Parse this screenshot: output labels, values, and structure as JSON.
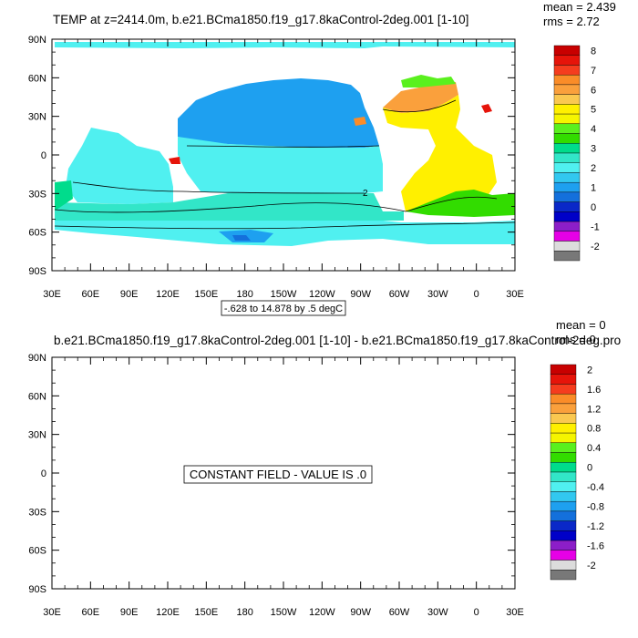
{
  "panel_top": {
    "title": "TEMP at z=2414.0m, b.e21.BCma1850.f19_g17.8kaControl-2deg.001 [1-10]",
    "mean_label": "mean = 2.439",
    "rms_label": "rms = 2.72",
    "contour_info": "-.628 to 14.878 by .5 degC",
    "contour_label": "2",
    "lat_labels": [
      "90N",
      "60N",
      "30N",
      "0",
      "30S",
      "60S",
      "90S"
    ],
    "lon_labels": [
      "30E",
      "60E",
      "90E",
      "120E",
      "150E",
      "180",
      "150W",
      "120W",
      "90W",
      "60W",
      "30W",
      "0",
      "30E"
    ],
    "colorbar_labels": [
      "8",
      "7",
      "6",
      "5",
      "4",
      "3",
      "2",
      "1",
      "0",
      "-1",
      "-2"
    ]
  },
  "panel_bottom": {
    "title": "b.e21.BCma1850.f19_g17.8kaControl-2deg.001 [1-10] - b.e21.BCma1850.f19_g17.8kaControl-2deg.pro",
    "mean_label": "mean = 0",
    "rms_label": "rms = 0",
    "constant_text": "CONSTANT FIELD - VALUE IS .0",
    "lat_labels": [
      "90N",
      "60N",
      "30N",
      "0",
      "30S",
      "60S",
      "90S"
    ],
    "lon_labels": [
      "30E",
      "60E",
      "90E",
      "120E",
      "150E",
      "180",
      "150W",
      "120W",
      "90W",
      "60W",
      "30W",
      "0",
      "30E"
    ],
    "colorbar_labels": [
      "2",
      "1.6",
      "1.2",
      "0.8",
      "0.4",
      "0",
      "-0.4",
      "-0.8",
      "-1.2",
      "-1.6",
      "-2"
    ]
  },
  "colorbar_colors": [
    "#c80000",
    "#e6140a",
    "#f53c1e",
    "#fa8c28",
    "#faa03c",
    "#fac850",
    "#fff000",
    "#f5f500",
    "#5af01e",
    "#32dc00",
    "#00dc8c",
    "#32e6c8",
    "#50f0f0",
    "#32c8f0",
    "#1ea0f0",
    "#1470dc",
    "#0a28c8",
    "#0000c8",
    "#8c1ec8",
    "#e600e6",
    "#dcdcdc",
    "#787878"
  ],
  "colors": {
    "ocean_cyan": "#50f0f0",
    "ocean_blue": "#1ea0f0",
    "ocean_teal": "#32e6c8",
    "ocean_green": "#00dc8c",
    "atlantic_yellow": "#fff000",
    "atlantic_gold": "#faa03c"
  }
}
